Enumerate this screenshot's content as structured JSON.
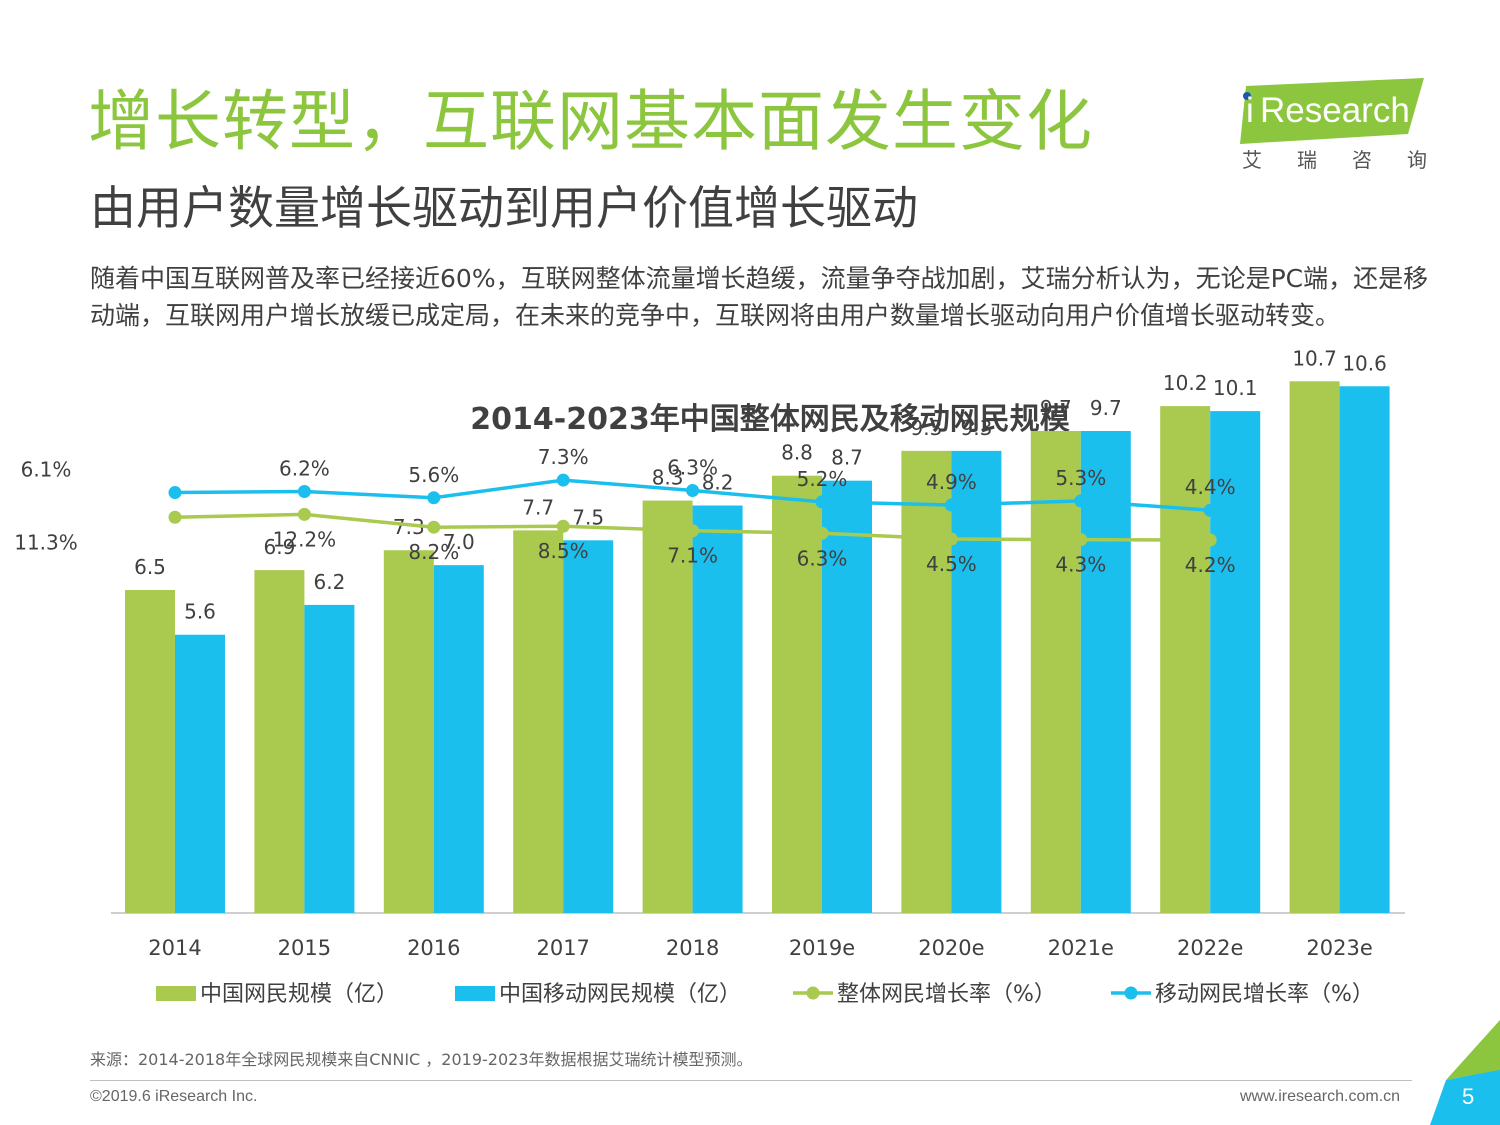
{
  "header": {
    "title": "增长转型，互联网基本面发生变化",
    "subtitle": "由用户数量增长驱动到用户价值增长驱动",
    "intro": "随着中国互联网普及率已经接近60%，互联网整体流量增长趋缓，流量争夺战加剧，艾瑞分析认为，无论是PC端，还是移动端，互联网用户增长放缓已成定局，在未来的竞争中，互联网将由用户数量增长驱动向用户价值增长驱动转变。"
  },
  "logo": {
    "brand": "iResearch",
    "brand_i": "i",
    "brand_rest": "Research",
    "cn": "艾瑞咨询"
  },
  "colors": {
    "green": "#a9c94f",
    "blue": "#1bbfee",
    "title_green": "#8cc63f"
  },
  "chart_data": {
    "type": "bar",
    "title": "2014-2023年中国整体网民及移动网民规模",
    "categories": [
      "2014",
      "2015",
      "2016",
      "2017",
      "2018",
      "2019e",
      "2020e",
      "2021e",
      "2022e",
      "2023e"
    ],
    "series": [
      {
        "name": "中国网民规模（亿）",
        "kind": "bar",
        "color": "#a9c94f",
        "values": [
          6.5,
          6.9,
          7.3,
          7.7,
          8.3,
          8.8,
          9.3,
          9.7,
          10.2,
          10.7
        ],
        "labels": [
          "6.5",
          "6.9",
          "7.3",
          "7.7",
          "8.3",
          "8.8",
          "9.3",
          "9.7",
          "10.2",
          "10.7"
        ]
      },
      {
        "name": "中国移动网民规模（亿）",
        "kind": "bar",
        "color": "#1bbfee",
        "values": [
          5.6,
          6.2,
          7.0,
          7.5,
          8.2,
          8.7,
          9.3,
          9.7,
          10.1,
          10.6
        ],
        "labels": [
          "5.6",
          "6.2",
          "7.0",
          "7.5",
          "8.2",
          "8.7",
          "9.3",
          "9.7",
          "10.1",
          "10.6"
        ]
      },
      {
        "name": "整体网民增长率（%）",
        "kind": "line",
        "color": "#a9c94f",
        "values": [
          11.3,
          12.2,
          8.2,
          8.5,
          7.1,
          6.3,
          4.5,
          4.3,
          4.2,
          null
        ],
        "labels": [
          "11.3%",
          "12.2%",
          "8.2%",
          "8.5%",
          "7.1%",
          "6.3%",
          "4.5%",
          "4.3%",
          "4.2%",
          ""
        ]
      },
      {
        "name": "移动网民增长率（%）",
        "kind": "line",
        "color": "#1bbfee",
        "values": [
          6.1,
          6.2,
          5.6,
          7.3,
          6.3,
          5.2,
          4.9,
          5.3,
          4.4,
          null
        ],
        "labels": [
          "6.1%",
          "6.2%",
          "5.6%",
          "7.3%",
          "6.3%",
          "5.2%",
          "4.9%",
          "5.3%",
          "4.4%",
          ""
        ]
      }
    ],
    "bar_ylim": [
      0,
      11.5
    ],
    "legend": "bottom"
  },
  "footer": {
    "source": "来源：2014-2018年全球网民规模来自CNNIC ，2019-2023年数据根据艾瑞统计模型预测。",
    "copyright": "©2019.6 iResearch Inc.",
    "website": "www.iresearch.com.cn",
    "page": "5"
  }
}
